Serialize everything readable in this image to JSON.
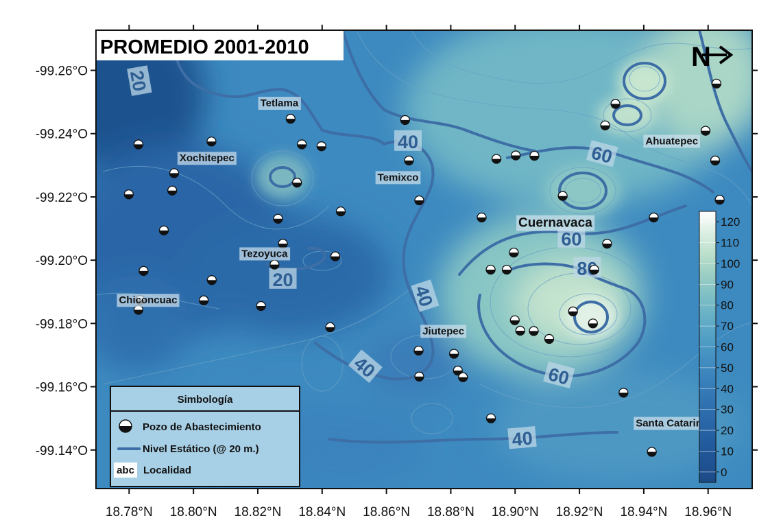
{
  "title": "PROMEDIO 2001-2010",
  "north_arrow": {
    "label": "N"
  },
  "axes": {
    "x_ticks": [
      "18.78°N",
      "18.80°N",
      "18.82°N",
      "18.84°N",
      "18.86°N",
      "18.88°N",
      "18.90°N",
      "18.92°N",
      "18.94°N",
      "18.96°N"
    ],
    "x_values": [
      18.78,
      18.8,
      18.82,
      18.84,
      18.86,
      18.88,
      18.9,
      18.92,
      18.94,
      18.96
    ],
    "y_ticks": [
      "-99.26°O",
      "-99.24°O",
      "-99.22°O",
      "-99.20°O",
      "-99.18°O",
      "-99.16°O",
      "-99.14°O"
    ],
    "y_values": [
      -99.26,
      -99.24,
      -99.22,
      -99.2,
      -99.18,
      -99.16,
      -99.14
    ],
    "x_range": [
      18.7697,
      18.9737
    ],
    "y_range": [
      -99.2727,
      -99.1278
    ]
  },
  "colorbar": {
    "ticks": [
      "0",
      "10",
      "20",
      "30",
      "40",
      "50",
      "60",
      "70",
      "80",
      "90",
      "100",
      "110",
      "120"
    ],
    "colors": [
      "#1c4a86",
      "#1f5393",
      "#235d9f",
      "#2a68aa",
      "#3275b3",
      "#3a82bb",
      "#4490c2",
      "#53a0c5",
      "#67b0c6",
      "#7fc0c5",
      "#9ccfc4",
      "#bde0cc",
      "#dcefe3"
    ],
    "bottom_color": "#1c4a86",
    "top_color": "#ffffff"
  },
  "contour_labels": [
    {
      "text": "20",
      "lat": 18.783,
      "lon": -99.2567,
      "rot": 80
    },
    {
      "text": "20",
      "lat": 18.8278,
      "lon": -99.194,
      "rot": 0
    },
    {
      "text": "40",
      "lat": 18.8667,
      "lon": -99.2376,
      "rot": 0
    },
    {
      "text": "40",
      "lat": 18.8718,
      "lon": -99.1887,
      "rot": 72
    },
    {
      "text": "40",
      "lat": 18.8533,
      "lon": -99.1663,
      "rot": 40
    },
    {
      "text": "40",
      "lat": 18.9022,
      "lon": -99.1437,
      "rot": -5
    },
    {
      "text": "60",
      "lat": 18.927,
      "lon": -99.2335,
      "rot": 15
    },
    {
      "text": "60",
      "lat": 18.9175,
      "lon": -99.2069,
      "rot": 0
    },
    {
      "text": "80",
      "lat": 18.9224,
      "lon": -99.1975,
      "rot": 0
    },
    {
      "text": "60",
      "lat": 18.9136,
      "lon": -99.1635,
      "rot": 15
    }
  ],
  "localities": [
    {
      "name": "Tetlama",
      "lat": 18.8267,
      "lon": -99.2497
    },
    {
      "name": "Xochitepec",
      "lat": 18.8042,
      "lon": -99.2323
    },
    {
      "name": "Temixco",
      "lat": 18.8636,
      "lon": -99.2262
    },
    {
      "name": "Ahuatepec",
      "lat": 18.9487,
      "lon": -99.2377
    },
    {
      "name": "Cuernavaca",
      "lat": 18.9125,
      "lon": -99.2116,
      "big": true
    },
    {
      "name": "Tezoyuca",
      "lat": 18.8221,
      "lon": -99.2021
    },
    {
      "name": "Chiconcuac",
      "lat": 18.7859,
      "lon": -99.1874
    },
    {
      "name": "Jiutepec",
      "lat": 18.8777,
      "lon": -99.1776
    },
    {
      "name": "Santa Catarina",
      "lat": 18.9487,
      "lon": -99.1485
    }
  ],
  "wells": [
    [
      18.8302,
      -99.2447
    ],
    [
      18.7829,
      -99.2366
    ],
    [
      18.8056,
      -99.2375
    ],
    [
      18.8337,
      -99.2366
    ],
    [
      18.8398,
      -99.236
    ],
    [
      18.8658,
      -99.2443
    ],
    [
      18.867,
      -99.2315
    ],
    [
      18.8942,
      -99.232
    ],
    [
      18.9002,
      -99.2331
    ],
    [
      18.906,
      -99.233
    ],
    [
      18.9312,
      -99.2494
    ],
    [
      18.928,
      -99.2426
    ],
    [
      18.9592,
      -99.2409
    ],
    [
      18.9622,
      -99.2315
    ],
    [
      18.9626,
      -99.2558
    ],
    [
      18.794,
      -99.2275
    ],
    [
      18.7934,
      -99.222
    ],
    [
      18.8322,
      -99.2245
    ],
    [
      18.7799,
      -99.2208
    ],
    [
      18.8702,
      -99.2189
    ],
    [
      18.9148,
      -99.2203
    ],
    [
      18.9636,
      -99.2191
    ],
    [
      18.8263,
      -99.2131
    ],
    [
      18.8458,
      -99.2154
    ],
    [
      18.8896,
      -99.2135
    ],
    [
      18.9431,
      -99.2135
    ],
    [
      18.7908,
      -99.2094
    ],
    [
      18.8278,
      -99.2052
    ],
    [
      18.8441,
      -99.2012
    ],
    [
      18.8252,
      -99.1986
    ],
    [
      18.7845,
      -99.1966
    ],
    [
      18.8057,
      -99.1937
    ],
    [
      18.8032,
      -99.1873
    ],
    [
      18.7834,
      -99.1874
    ],
    [
      18.7829,
      -99.1843
    ],
    [
      18.821,
      -99.1855
    ],
    [
      18.8425,
      -99.1788
    ],
    [
      18.8996,
      -99.2024
    ],
    [
      18.8924,
      -99.197
    ],
    [
      18.8974,
      -99.197
    ],
    [
      18.9246,
      -99.197
    ],
    [
      18.8999,
      -99.181
    ],
    [
      18.918,
      -99.1838
    ],
    [
      18.9242,
      -99.18
    ],
    [
      18.9016,
      -99.1777
    ],
    [
      18.9058,
      -99.1776
    ],
    [
      18.9106,
      -99.1751
    ],
    [
      18.87,
      -99.1714
    ],
    [
      18.881,
      -99.1704
    ],
    [
      18.8702,
      -99.1632
    ],
    [
      18.8822,
      -99.1651
    ],
    [
      18.8838,
      -99.163
    ],
    [
      18.9286,
      -99.2052
    ],
    [
      18.9337,
      -99.1581
    ],
    [
      18.8925,
      -99.15
    ],
    [
      18.9425,
      -99.1394
    ]
  ],
  "legend": {
    "title": "Simbología",
    "items": [
      {
        "kind": "well",
        "label": "Pozo de Abastecimiento"
      },
      {
        "kind": "line",
        "label": "Nivel Estático (@ 20 m.)",
        "color": "#3d6ea6"
      },
      {
        "kind": "locality",
        "symbol": "abc",
        "label": "Localidad"
      }
    ]
  }
}
